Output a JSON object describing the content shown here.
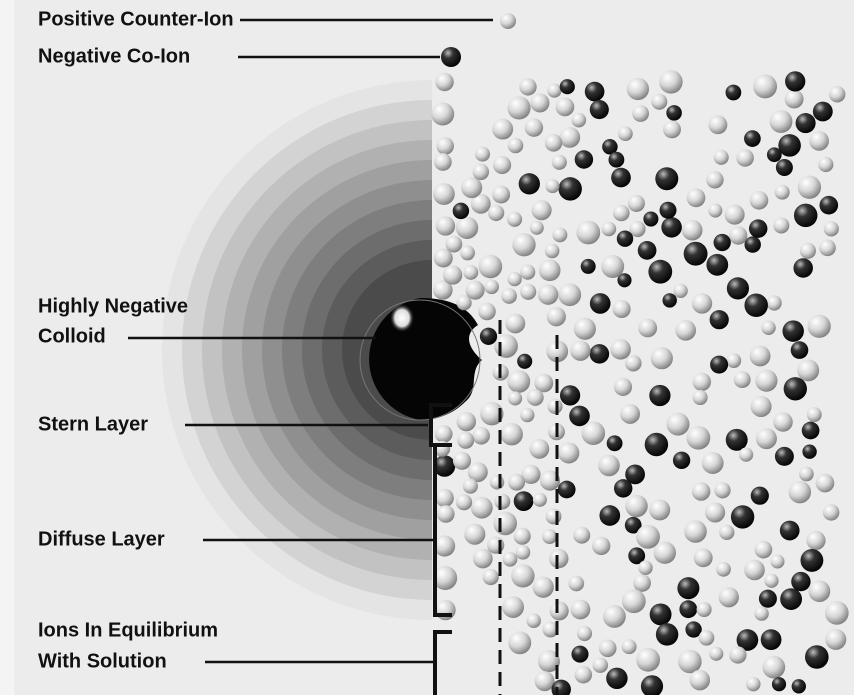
{
  "labels": [
    {
      "lines": [
        "Positive Counter-Ion"
      ]
    },
    {
      "lines": [
        "Negative Co-Ion"
      ]
    },
    {
      "lines": [
        "Highly Negative",
        "Colloid"
      ]
    },
    {
      "lines": [
        "Stern Layer"
      ]
    },
    {
      "lines": [
        "Diffuse Layer"
      ]
    },
    {
      "lines": [
        "Ions In Equilibrium",
        "With Solution"
      ]
    }
  ]
}
